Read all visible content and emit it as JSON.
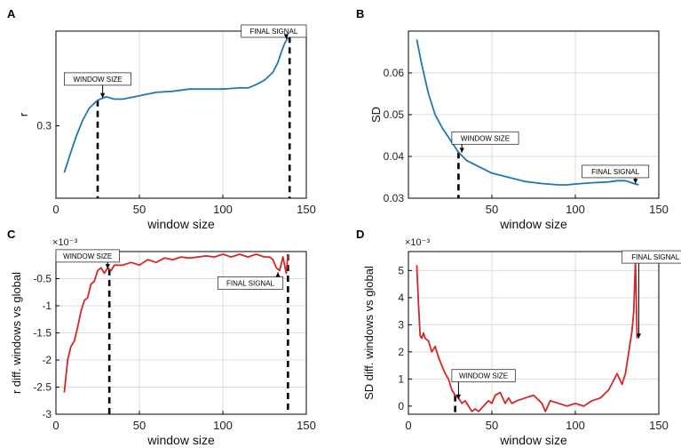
{
  "colors": {
    "blue": "#1f77b4",
    "red": "#d62728",
    "grid": "#dcdcdc",
    "axis": "#000000"
  },
  "chart_data": [
    {
      "panel_letter": "A",
      "type": "line",
      "xlabel": "window size",
      "ylabel": "r",
      "xlim": [
        0,
        150
      ],
      "ylim": [
        0.235,
        0.385
      ],
      "xticks": [
        {
          "v": 0,
          "label": "0"
        },
        {
          "v": 50,
          "label": "50"
        },
        {
          "v": 100,
          "label": "100"
        },
        {
          "v": 150,
          "label": "150"
        }
      ],
      "yticks": [
        {
          "v": 0.3,
          "label": "0.3"
        }
      ],
      "grid_x": [
        50,
        100
      ],
      "grid_y": [],
      "series": [
        {
          "name": "r",
          "color": "blue",
          "x": [
            5,
            8,
            12,
            16,
            20,
            25,
            30,
            35,
            40,
            50,
            60,
            70,
            80,
            90,
            100,
            110,
            115,
            120,
            125,
            130,
            133,
            135,
            137,
            139,
            140
          ],
          "y": [
            0.258,
            0.272,
            0.29,
            0.305,
            0.316,
            0.323,
            0.326,
            0.324,
            0.324,
            0.327,
            0.33,
            0.331,
            0.333,
            0.333,
            0.333,
            0.334,
            0.334,
            0.337,
            0.341,
            0.348,
            0.357,
            0.366,
            0.374,
            0.379,
            0.38
          ]
        }
      ],
      "markers": [
        25,
        140
      ],
      "annotations": [
        {
          "text": "WINDOW SIZE",
          "box_x": 5,
          "box_y": 0.342,
          "box_w": 40,
          "arrow_to": [
            28,
            0.325
          ]
        },
        {
          "text": "FINAL SIGNAL",
          "box_x": 111,
          "box_y": 0.385,
          "box_w": 39,
          "arrow_to": [
            138,
            0.378
          ]
        }
      ]
    },
    {
      "panel_letter": "B",
      "type": "line",
      "xlabel": "window size",
      "ylabel": "SD",
      "xlim": [
        0,
        150
      ],
      "ylim": [
        0.03,
        0.07
      ],
      "xticks": [
        {
          "v": 50,
          "label": "50"
        },
        {
          "v": 100,
          "label": "100"
        },
        {
          "v": 150,
          "label": "150"
        }
      ],
      "yticks": [
        {
          "v": 0.03,
          "label": "0.03"
        },
        {
          "v": 0.04,
          "label": "0.04"
        },
        {
          "v": 0.05,
          "label": "0.05"
        },
        {
          "v": 0.06,
          "label": "0.06"
        }
      ],
      "grid_x": [
        50,
        100
      ],
      "grid_y": [
        0.04,
        0.05,
        0.06
      ],
      "series": [
        {
          "name": "SD",
          "color": "blue",
          "x": [
            5,
            8,
            12,
            16,
            20,
            25,
            30,
            35,
            40,
            50,
            60,
            70,
            80,
            90,
            95,
            100,
            110,
            120,
            125,
            130,
            133,
            135,
            138
          ],
          "y": [
            0.068,
            0.062,
            0.055,
            0.05,
            0.047,
            0.044,
            0.041,
            0.039,
            0.038,
            0.036,
            0.035,
            0.034,
            0.0335,
            0.0332,
            0.0332,
            0.0334,
            0.0337,
            0.0339,
            0.0342,
            0.0342,
            0.0338,
            0.0335,
            0.0332
          ]
        }
      ],
      "markers": [
        30
      ],
      "annotations": [
        {
          "text": "WINDOW SIZE",
          "box_x": 26,
          "box_y": 0.0444,
          "box_w": 40,
          "arrow_to": [
            32,
            0.0409
          ]
        },
        {
          "text": "FINAL SIGNAL",
          "box_x": 104,
          "box_y": 0.0364,
          "box_w": 40,
          "arrow_to": [
            136,
            0.0335
          ]
        }
      ]
    },
    {
      "panel_letter": "C",
      "type": "line",
      "xlabel": "window size",
      "ylabel": "r diff. windows vs global",
      "exponent": "×10⁻³",
      "xlim": [
        0,
        150
      ],
      "ylim": [
        -3.0,
        0.0
      ],
      "xticks": [
        {
          "v": 0,
          "label": "0"
        },
        {
          "v": 50,
          "label": "50"
        },
        {
          "v": 100,
          "label": "100"
        },
        {
          "v": 150,
          "label": "150"
        }
      ],
      "yticks": [
        {
          "v": -3.0,
          "label": "-3"
        },
        {
          "v": -2.5,
          "label": "-2.5"
        },
        {
          "v": -2.0,
          "label": "-2"
        },
        {
          "v": -1.5,
          "label": "-1.5"
        },
        {
          "v": -1.0,
          "label": "-1"
        },
        {
          "v": -0.5,
          "label": "-0.5"
        }
      ],
      "grid_x": [
        50,
        100
      ],
      "grid_y": [
        -2.5,
        -2.0,
        -1.5,
        -1.0,
        -0.5
      ],
      "series": [
        {
          "name": "r diff",
          "color": "red",
          "x": [
            5,
            7,
            9,
            11,
            13,
            15,
            17,
            19,
            21,
            23,
            25,
            27,
            29,
            31,
            33,
            35,
            40,
            45,
            50,
            55,
            60,
            65,
            70,
            75,
            80,
            85,
            90,
            95,
            100,
            105,
            110,
            115,
            120,
            125,
            128,
            130,
            132,
            134,
            136,
            138,
            139
          ],
          "y": [
            -2.6,
            -2.0,
            -1.75,
            -1.65,
            -1.4,
            -1.1,
            -0.9,
            -0.85,
            -0.6,
            -0.55,
            -0.35,
            -0.3,
            -0.4,
            -0.3,
            -0.35,
            -0.25,
            -0.25,
            -0.2,
            -0.25,
            -0.15,
            -0.2,
            -0.12,
            -0.15,
            -0.1,
            -0.12,
            -0.1,
            -0.08,
            -0.1,
            -0.05,
            -0.1,
            -0.05,
            -0.1,
            -0.05,
            -0.1,
            -0.1,
            -0.15,
            -0.3,
            -0.35,
            -0.1,
            -0.4,
            -0.05
          ]
        }
      ],
      "markers": [
        32,
        139
      ],
      "annotations": [
        {
          "text": "WINDOW SIZE",
          "box_x": 0,
          "box_y": -0.08,
          "box_w": 38,
          "arrow_to": [
            31,
            -0.32
          ]
        },
        {
          "text": "FINAL SIGNAL",
          "box_x": 97,
          "box_y": -0.58,
          "box_w": 39,
          "arrow_to": [
            133,
            -0.38
          ]
        }
      ]
    },
    {
      "panel_letter": "D",
      "type": "line",
      "xlabel": "window size",
      "ylabel": "SD diff. windows vs global",
      "exponent": "×10⁻³",
      "xlim": [
        0,
        150
      ],
      "ylim": [
        -0.3,
        5.7
      ],
      "xticks": [
        {
          "v": 0,
          "label": "0"
        },
        {
          "v": 50,
          "label": "50"
        },
        {
          "v": 100,
          "label": "100"
        },
        {
          "v": 150,
          "label": "150"
        }
      ],
      "yticks": [
        {
          "v": 0,
          "label": "0"
        },
        {
          "v": 1,
          "label": "1"
        },
        {
          "v": 2,
          "label": "2"
        },
        {
          "v": 3,
          "label": "3"
        },
        {
          "v": 4,
          "label": "4"
        },
        {
          "v": 5,
          "label": "5"
        }
      ],
      "grid_x": [
        50,
        100
      ],
      "grid_y": [
        1,
        2,
        3,
        4,
        5
      ],
      "series": [
        {
          "name": "SD diff",
          "color": "red",
          "x": [
            5,
            6,
            7,
            8,
            9,
            10,
            12,
            14,
            16,
            18,
            20,
            22,
            24,
            26,
            28,
            30,
            32,
            34,
            36,
            38,
            40,
            42,
            45,
            48,
            50,
            52,
            55,
            58,
            60,
            62,
            65,
            70,
            75,
            80,
            82,
            85,
            90,
            95,
            100,
            105,
            110,
            115,
            120,
            125,
            128,
            130,
            132,
            134,
            135,
            136,
            137
          ],
          "y": [
            5.2,
            3.8,
            2.6,
            2.5,
            2.7,
            2.5,
            2.4,
            2.0,
            2.2,
            1.8,
            1.5,
            1.2,
            1.0,
            0.6,
            0.4,
            0.3,
            0.1,
            0.2,
            0.0,
            -0.2,
            -0.1,
            -0.2,
            0.0,
            0.2,
            0.1,
            0.4,
            0.5,
            0.1,
            0.3,
            0.1,
            0.2,
            0.3,
            0.4,
            0.1,
            -0.2,
            0.2,
            0.1,
            0.0,
            0.1,
            0.0,
            0.2,
            0.3,
            0.6,
            1.2,
            0.8,
            1.2,
            2.0,
            2.8,
            3.5,
            5.4,
            2.5
          ]
        }
      ],
      "markers": [
        28
      ],
      "annotations": [
        {
          "text": "WINDOW SIZE",
          "box_x": 26,
          "box_y": 1.12,
          "box_w": 38,
          "arrow_to": [
            30,
            0.25
          ]
        },
        {
          "text": "FINAL SIGNAL",
          "box_x": 128,
          "box_y": 5.5,
          "box_w": 40,
          "arrow_to": [
            138,
            2.5
          ]
        }
      ]
    }
  ]
}
